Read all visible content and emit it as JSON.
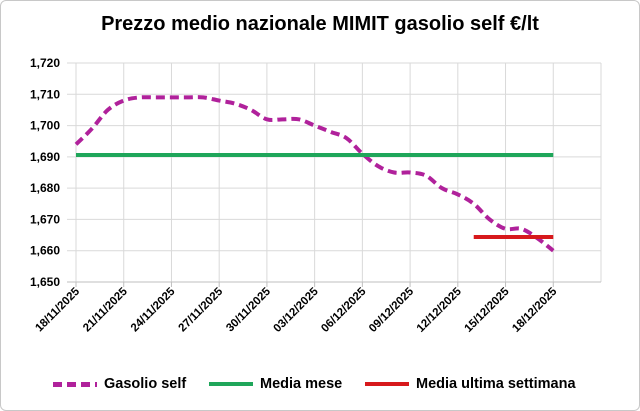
{
  "chart_data": {
    "type": "line",
    "title": "Prezzo medio nazionale MIMIT gasolio self €/lt",
    "xlabel": "",
    "ylabel": "",
    "ylim": [
      1.65,
      1.72
    ],
    "y_ticks": [
      "1,650",
      "1,660",
      "1,670",
      "1,680",
      "1,690",
      "1,700",
      "1,710",
      "1,720"
    ],
    "x_ticks": [
      "18/11/2025",
      "21/11/2025",
      "24/11/2025",
      "27/11/2025",
      "30/11/2025",
      "03/12/2025",
      "06/12/2025",
      "09/12/2025",
      "12/12/2025",
      "15/12/2025",
      "18/12/2025"
    ],
    "grid": true,
    "legend_position": "bottom",
    "series": [
      {
        "name": "Gasolio self",
        "style": "dashed",
        "color": "#b0219b",
        "x": [
          "18/11/2025",
          "19/11/2025",
          "20/11/2025",
          "21/11/2025",
          "22/11/2025",
          "23/11/2025",
          "24/11/2025",
          "25/11/2025",
          "26/11/2025",
          "27/11/2025",
          "28/11/2025",
          "29/11/2025",
          "30/11/2025",
          "01/12/2025",
          "02/12/2025",
          "03/12/2025",
          "04/12/2025",
          "05/12/2025",
          "06/12/2025",
          "07/12/2025",
          "08/12/2025",
          "09/12/2025",
          "10/12/2025",
          "11/12/2025",
          "12/12/2025",
          "13/12/2025",
          "14/12/2025",
          "15/12/2025",
          "16/12/2025",
          "17/12/2025",
          "18/12/2025"
        ],
        "values": [
          1.694,
          1.699,
          1.705,
          1.708,
          1.709,
          1.709,
          1.709,
          1.709,
          1.709,
          1.708,
          1.707,
          1.705,
          1.702,
          1.702,
          1.702,
          1.7,
          1.698,
          1.696,
          1.691,
          1.687,
          1.685,
          1.685,
          1.684,
          1.68,
          1.678,
          1.675,
          1.67,
          1.667,
          1.667,
          1.664,
          1.66
        ]
      },
      {
        "name": "Media mese",
        "style": "solid",
        "color": "#1fa65a",
        "x": [
          "18/11/2025",
          "18/12/2025"
        ],
        "values": [
          1.6906,
          1.6906
        ]
      },
      {
        "name": "Media ultima settimana",
        "style": "solid",
        "color": "#d7191c",
        "x": [
          "13/12/2025",
          "18/12/2025"
        ],
        "values": [
          1.6644,
          1.6644
        ]
      }
    ]
  }
}
